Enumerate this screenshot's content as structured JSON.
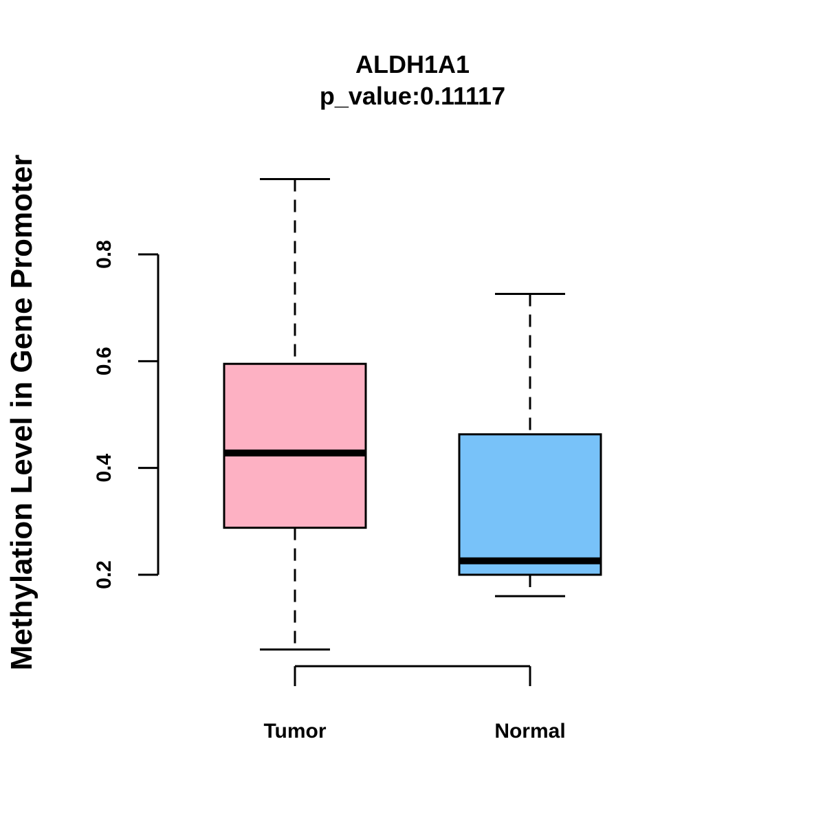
{
  "chart_data": {
    "type": "boxplot",
    "title": "ALDH1A1",
    "subtitle": "p_value:0.11117",
    "xlabel": "",
    "ylabel": "Methylation Level in Gene Promoter",
    "ylim": [
      0.2,
      0.8
    ],
    "yticks": [
      0.2,
      0.4,
      0.6,
      0.8
    ],
    "ytick_labels": [
      "0.2",
      "0.4",
      "0.6",
      "0.8"
    ],
    "categories": [
      "Tumor",
      "Normal"
    ],
    "groups": [
      {
        "name": "Tumor",
        "min": 0.06,
        "q1": 0.288,
        "median": 0.428,
        "q3": 0.595,
        "max": 0.941,
        "color": "#FDB1C3"
      },
      {
        "name": "Normal",
        "min": 0.16,
        "q1": 0.2,
        "median": 0.226,
        "q3": 0.463,
        "max": 0.726,
        "color": "#78C2F9"
      }
    ],
    "grid": false,
    "legend": "none"
  }
}
